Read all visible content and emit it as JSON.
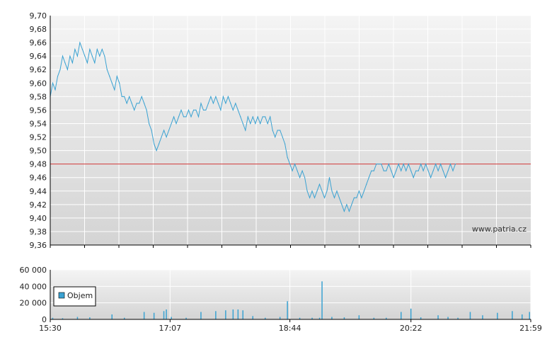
{
  "watermark": "www.patria.cz",
  "colors": {
    "price_line": "#3aa2d2",
    "volume_bars": "#3aa2d2",
    "reference_line": "#cc3333",
    "plot_bg_top": "#f4f4f4",
    "plot_bg_bottom": "#d4d4d4",
    "grid": "#ffffff",
    "axis": "#000000"
  },
  "chart_data": [
    {
      "type": "line",
      "name": "price",
      "xlabel": "",
      "ylabel": "",
      "ylim": [
        9.36,
        9.7
      ],
      "y_ticks": [
        "9,36",
        "9,38",
        "9,40",
        "9,42",
        "9,44",
        "9,46",
        "9,48",
        "9,50",
        "9,52",
        "9,54",
        "9,56",
        "9,58",
        "9,60",
        "9,62",
        "9,64",
        "9,66",
        "9,68",
        "9,70"
      ],
      "reference_line": 9.48,
      "grid": true,
      "points": [
        [
          "15:30",
          9.58
        ],
        [
          "15:32",
          9.6
        ],
        [
          "15:34",
          9.59
        ],
        [
          "15:36",
          9.61
        ],
        [
          "15:38",
          9.62
        ],
        [
          "15:40",
          9.64
        ],
        [
          "15:42",
          9.63
        ],
        [
          "15:44",
          9.62
        ],
        [
          "15:46",
          9.64
        ],
        [
          "15:48",
          9.63
        ],
        [
          "15:50",
          9.65
        ],
        [
          "15:52",
          9.64
        ],
        [
          "15:54",
          9.66
        ],
        [
          "15:56",
          9.65
        ],
        [
          "15:58",
          9.64
        ],
        [
          "16:00",
          9.63
        ],
        [
          "16:02",
          9.65
        ],
        [
          "16:04",
          9.64
        ],
        [
          "16:06",
          9.63
        ],
        [
          "16:08",
          9.65
        ],
        [
          "16:10",
          9.64
        ],
        [
          "16:12",
          9.65
        ],
        [
          "16:14",
          9.64
        ],
        [
          "16:16",
          9.62
        ],
        [
          "16:18",
          9.61
        ],
        [
          "16:20",
          9.6
        ],
        [
          "16:22",
          9.59
        ],
        [
          "16:24",
          9.61
        ],
        [
          "16:26",
          9.6
        ],
        [
          "16:28",
          9.58
        ],
        [
          "16:30",
          9.58
        ],
        [
          "16:32",
          9.57
        ],
        [
          "16:34",
          9.58
        ],
        [
          "16:36",
          9.57
        ],
        [
          "16:38",
          9.56
        ],
        [
          "16:40",
          9.57
        ],
        [
          "16:42",
          9.57
        ],
        [
          "16:44",
          9.58
        ],
        [
          "16:46",
          9.57
        ],
        [
          "16:48",
          9.56
        ],
        [
          "16:50",
          9.54
        ],
        [
          "16:52",
          9.53
        ],
        [
          "16:54",
          9.51
        ],
        [
          "16:56",
          9.5
        ],
        [
          "16:58",
          9.51
        ],
        [
          "17:00",
          9.52
        ],
        [
          "17:02",
          9.53
        ],
        [
          "17:04",
          9.52
        ],
        [
          "17:06",
          9.53
        ],
        [
          "17:08",
          9.54
        ],
        [
          "17:10",
          9.55
        ],
        [
          "17:12",
          9.54
        ],
        [
          "17:14",
          9.55
        ],
        [
          "17:16",
          9.56
        ],
        [
          "17:18",
          9.55
        ],
        [
          "17:20",
          9.55
        ],
        [
          "17:22",
          9.56
        ],
        [
          "17:24",
          9.55
        ],
        [
          "17:26",
          9.56
        ],
        [
          "17:28",
          9.56
        ],
        [
          "17:30",
          9.55
        ],
        [
          "17:32",
          9.57
        ],
        [
          "17:34",
          9.56
        ],
        [
          "17:36",
          9.56
        ],
        [
          "17:38",
          9.57
        ],
        [
          "17:40",
          9.58
        ],
        [
          "17:42",
          9.57
        ],
        [
          "17:44",
          9.58
        ],
        [
          "17:46",
          9.57
        ],
        [
          "17:48",
          9.56
        ],
        [
          "17:50",
          9.58
        ],
        [
          "17:52",
          9.57
        ],
        [
          "17:54",
          9.58
        ],
        [
          "17:56",
          9.57
        ],
        [
          "17:58",
          9.56
        ],
        [
          "18:00",
          9.57
        ],
        [
          "18:02",
          9.56
        ],
        [
          "18:04",
          9.55
        ],
        [
          "18:06",
          9.54
        ],
        [
          "18:08",
          9.53
        ],
        [
          "18:10",
          9.55
        ],
        [
          "18:12",
          9.54
        ],
        [
          "18:14",
          9.55
        ],
        [
          "18:16",
          9.54
        ],
        [
          "18:18",
          9.55
        ],
        [
          "18:20",
          9.54
        ],
        [
          "18:22",
          9.55
        ],
        [
          "18:24",
          9.55
        ],
        [
          "18:26",
          9.54
        ],
        [
          "18:28",
          9.55
        ],
        [
          "18:30",
          9.53
        ],
        [
          "18:32",
          9.52
        ],
        [
          "18:34",
          9.53
        ],
        [
          "18:36",
          9.53
        ],
        [
          "18:38",
          9.52
        ],
        [
          "18:40",
          9.51
        ],
        [
          "18:42",
          9.49
        ],
        [
          "18:44",
          9.48
        ],
        [
          "18:46",
          9.47
        ],
        [
          "18:48",
          9.48
        ],
        [
          "18:50",
          9.47
        ],
        [
          "18:52",
          9.46
        ],
        [
          "18:54",
          9.47
        ],
        [
          "18:56",
          9.46
        ],
        [
          "18:58",
          9.44
        ],
        [
          "19:00",
          9.43
        ],
        [
          "19:02",
          9.44
        ],
        [
          "19:04",
          9.43
        ],
        [
          "19:06",
          9.44
        ],
        [
          "19:08",
          9.45
        ],
        [
          "19:10",
          9.44
        ],
        [
          "19:12",
          9.43
        ],
        [
          "19:14",
          9.44
        ],
        [
          "19:16",
          9.46
        ],
        [
          "19:18",
          9.44
        ],
        [
          "19:20",
          9.43
        ],
        [
          "19:22",
          9.44
        ],
        [
          "19:24",
          9.43
        ],
        [
          "19:26",
          9.42
        ],
        [
          "19:28",
          9.41
        ],
        [
          "19:30",
          9.42
        ],
        [
          "19:32",
          9.41
        ],
        [
          "19:34",
          9.42
        ],
        [
          "19:36",
          9.43
        ],
        [
          "19:38",
          9.43
        ],
        [
          "19:40",
          9.44
        ],
        [
          "19:42",
          9.43
        ],
        [
          "19:44",
          9.44
        ],
        [
          "19:46",
          9.45
        ],
        [
          "19:48",
          9.46
        ],
        [
          "19:50",
          9.47
        ],
        [
          "19:52",
          9.47
        ],
        [
          "19:54",
          9.48
        ],
        [
          "19:56",
          9.48
        ],
        [
          "19:58",
          9.48
        ],
        [
          "20:00",
          9.47
        ],
        [
          "20:02",
          9.47
        ],
        [
          "20:04",
          9.48
        ],
        [
          "20:06",
          9.47
        ],
        [
          "20:08",
          9.46
        ],
        [
          "20:10",
          9.47
        ],
        [
          "20:12",
          9.48
        ],
        [
          "20:14",
          9.47
        ],
        [
          "20:16",
          9.48
        ],
        [
          "20:18",
          9.47
        ],
        [
          "20:20",
          9.48
        ],
        [
          "20:22",
          9.47
        ],
        [
          "20:24",
          9.46
        ],
        [
          "20:26",
          9.47
        ],
        [
          "20:28",
          9.47
        ],
        [
          "20:30",
          9.48
        ],
        [
          "20:32",
          9.47
        ],
        [
          "20:34",
          9.48
        ],
        [
          "20:36",
          9.47
        ],
        [
          "20:38",
          9.46
        ],
        [
          "20:40",
          9.47
        ],
        [
          "20:42",
          9.48
        ],
        [
          "20:44",
          9.47
        ],
        [
          "20:46",
          9.48
        ],
        [
          "20:48",
          9.47
        ],
        [
          "20:50",
          9.46
        ],
        [
          "20:52",
          9.47
        ],
        [
          "20:54",
          9.48
        ],
        [
          "20:56",
          9.47
        ],
        [
          "20:58",
          9.48
        ]
      ]
    },
    {
      "type": "bar",
      "name": "volume",
      "legend": "Objem",
      "ylim": [
        0,
        60000
      ],
      "y_ticks": [
        "0",
        "20 000",
        "40 000",
        "60 000"
      ],
      "x_ticks": [
        "15:30",
        "17:07",
        "18:44",
        "20:22",
        "21:59"
      ],
      "grid": true,
      "points": [
        [
          "15:32",
          2000
        ],
        [
          "15:40",
          1500
        ],
        [
          "15:52",
          3000
        ],
        [
          "16:02",
          2500
        ],
        [
          "16:20",
          6000
        ],
        [
          "16:30",
          2000
        ],
        [
          "16:46",
          9000
        ],
        [
          "16:54",
          8000
        ],
        [
          "17:02",
          10000
        ],
        [
          "17:04",
          12000
        ],
        [
          "17:08",
          3000
        ],
        [
          "17:20",
          2000
        ],
        [
          "17:32",
          9000
        ],
        [
          "17:44",
          10000
        ],
        [
          "17:52",
          11000
        ],
        [
          "17:58",
          12000
        ],
        [
          "18:02",
          12000
        ],
        [
          "18:06",
          11000
        ],
        [
          "18:14",
          4000
        ],
        [
          "18:24",
          2000
        ],
        [
          "18:36",
          3000
        ],
        [
          "18:42",
          22000
        ],
        [
          "18:52",
          2000
        ],
        [
          "19:02",
          2000
        ],
        [
          "19:08",
          2000
        ],
        [
          "19:10",
          46000
        ],
        [
          "19:18",
          3000
        ],
        [
          "19:28",
          2500
        ],
        [
          "19:40",
          5000
        ],
        [
          "19:52",
          2000
        ],
        [
          "20:02",
          2000
        ],
        [
          "20:14",
          9000
        ],
        [
          "20:22",
          13000
        ],
        [
          "20:30",
          2500
        ],
        [
          "20:44",
          5000
        ],
        [
          "20:52",
          3000
        ],
        [
          "21:00",
          2000
        ],
        [
          "21:10",
          9000
        ],
        [
          "21:20",
          5000
        ],
        [
          "21:32",
          8000
        ],
        [
          "21:44",
          10000
        ],
        [
          "21:52",
          6000
        ],
        [
          "21:58",
          9000
        ]
      ]
    }
  ]
}
